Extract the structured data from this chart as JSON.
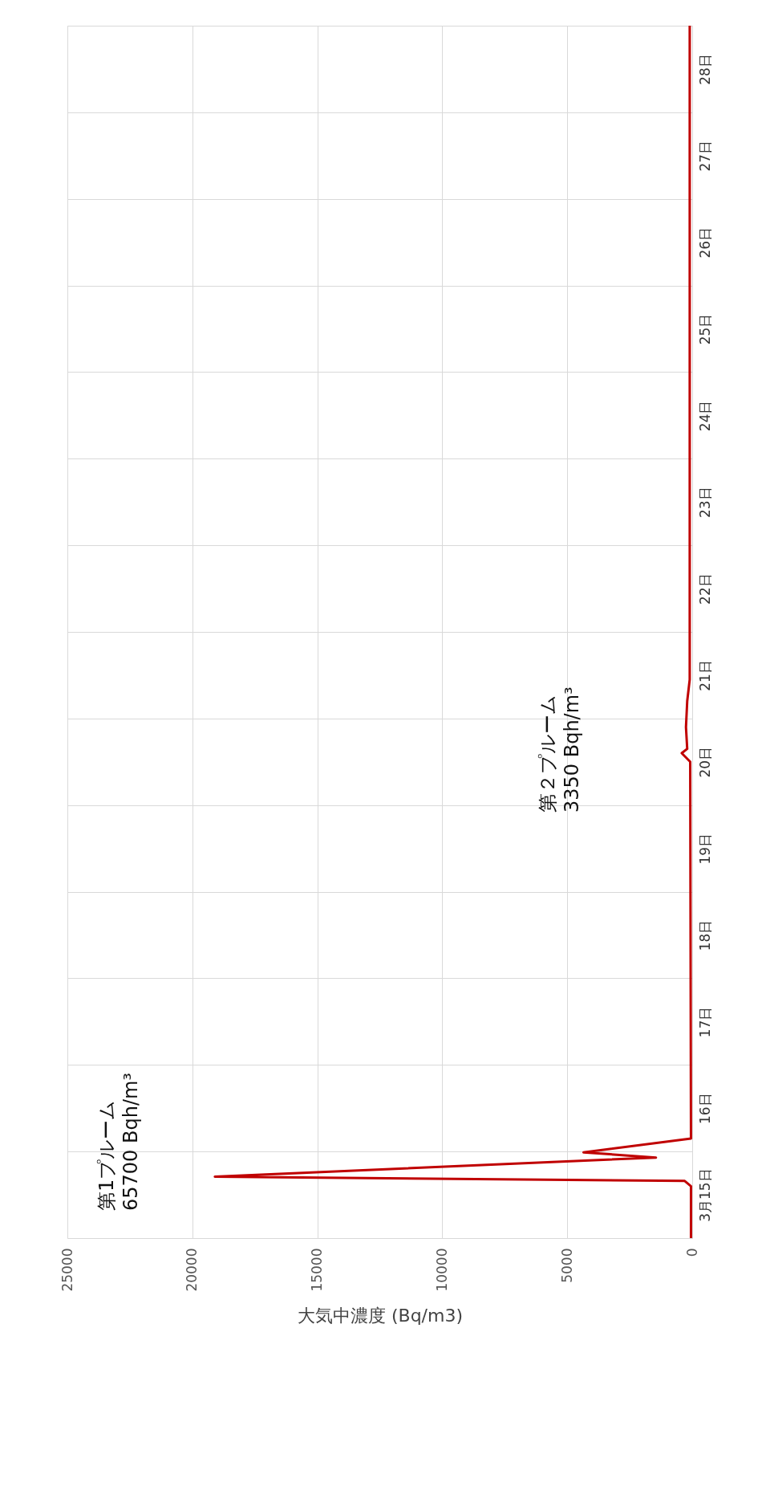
{
  "chart_data": {
    "type": "line",
    "xlabel": "大気中濃度 (Bq/m3)",
    "annotations": [
      "第1プルーム\n65700 Bqh/m³",
      "第２プルーム\n3350 Bqh/m³"
    ],
    "x": [
      50,
      50,
      300,
      19100,
      1450,
      4350,
      50,
      80,
      420,
      200,
      250,
      200,
      100,
      100
    ],
    "series": [
      {
        "color": "#c00000",
        "values": [
          15.0,
          15.6,
          15.66,
          15.71,
          15.93,
          15.99,
          16.15,
          20.5,
          20.6,
          20.65,
          20.9,
          21.2,
          21.45,
          29.0
        ]
      }
    ],
    "xlim": [
      25000,
      0
    ],
    "xticks": [
      0,
      5000,
      10000,
      15000,
      20000,
      25000
    ],
    "ylim": [
      15,
      29
    ],
    "yticks": [
      {
        "value": 15,
        "label": null
      },
      {
        "value": 15.5,
        "label": "3月15日"
      },
      {
        "value": 16,
        "label": null
      },
      {
        "value": 16.5,
        "label": "16日"
      },
      {
        "value": 17,
        "label": null
      },
      {
        "value": 17.5,
        "label": "17日"
      },
      {
        "value": 18,
        "label": null
      },
      {
        "value": 18.5,
        "label": "18日"
      },
      {
        "value": 19,
        "label": null
      },
      {
        "value": 19.5,
        "label": "19日"
      },
      {
        "value": 20,
        "label": null
      },
      {
        "value": 20.5,
        "label": "20日"
      },
      {
        "value": 21,
        "label": null
      },
      {
        "value": 21.5,
        "label": "21日"
      },
      {
        "value": 22,
        "label": null
      },
      {
        "value": 22.5,
        "label": "22日"
      },
      {
        "value": 23,
        "label": null
      },
      {
        "value": 23.5,
        "label": "23日"
      },
      {
        "value": 24,
        "label": null
      },
      {
        "value": 24.5,
        "label": "24日"
      },
      {
        "value": 25,
        "label": null
      },
      {
        "value": 25.5,
        "label": "25日"
      },
      {
        "value": 26,
        "label": null
      },
      {
        "value": 26.5,
        "label": "26日"
      },
      {
        "value": 27,
        "label": null
      },
      {
        "value": 27.5,
        "label": "27日"
      },
      {
        "value": 28,
        "label": null
      },
      {
        "value": 28.5,
        "label": "28日"
      },
      {
        "value": 29,
        "label": null
      }
    ],
    "grid": true,
    "marker": "none",
    "line_style": "solid"
  }
}
